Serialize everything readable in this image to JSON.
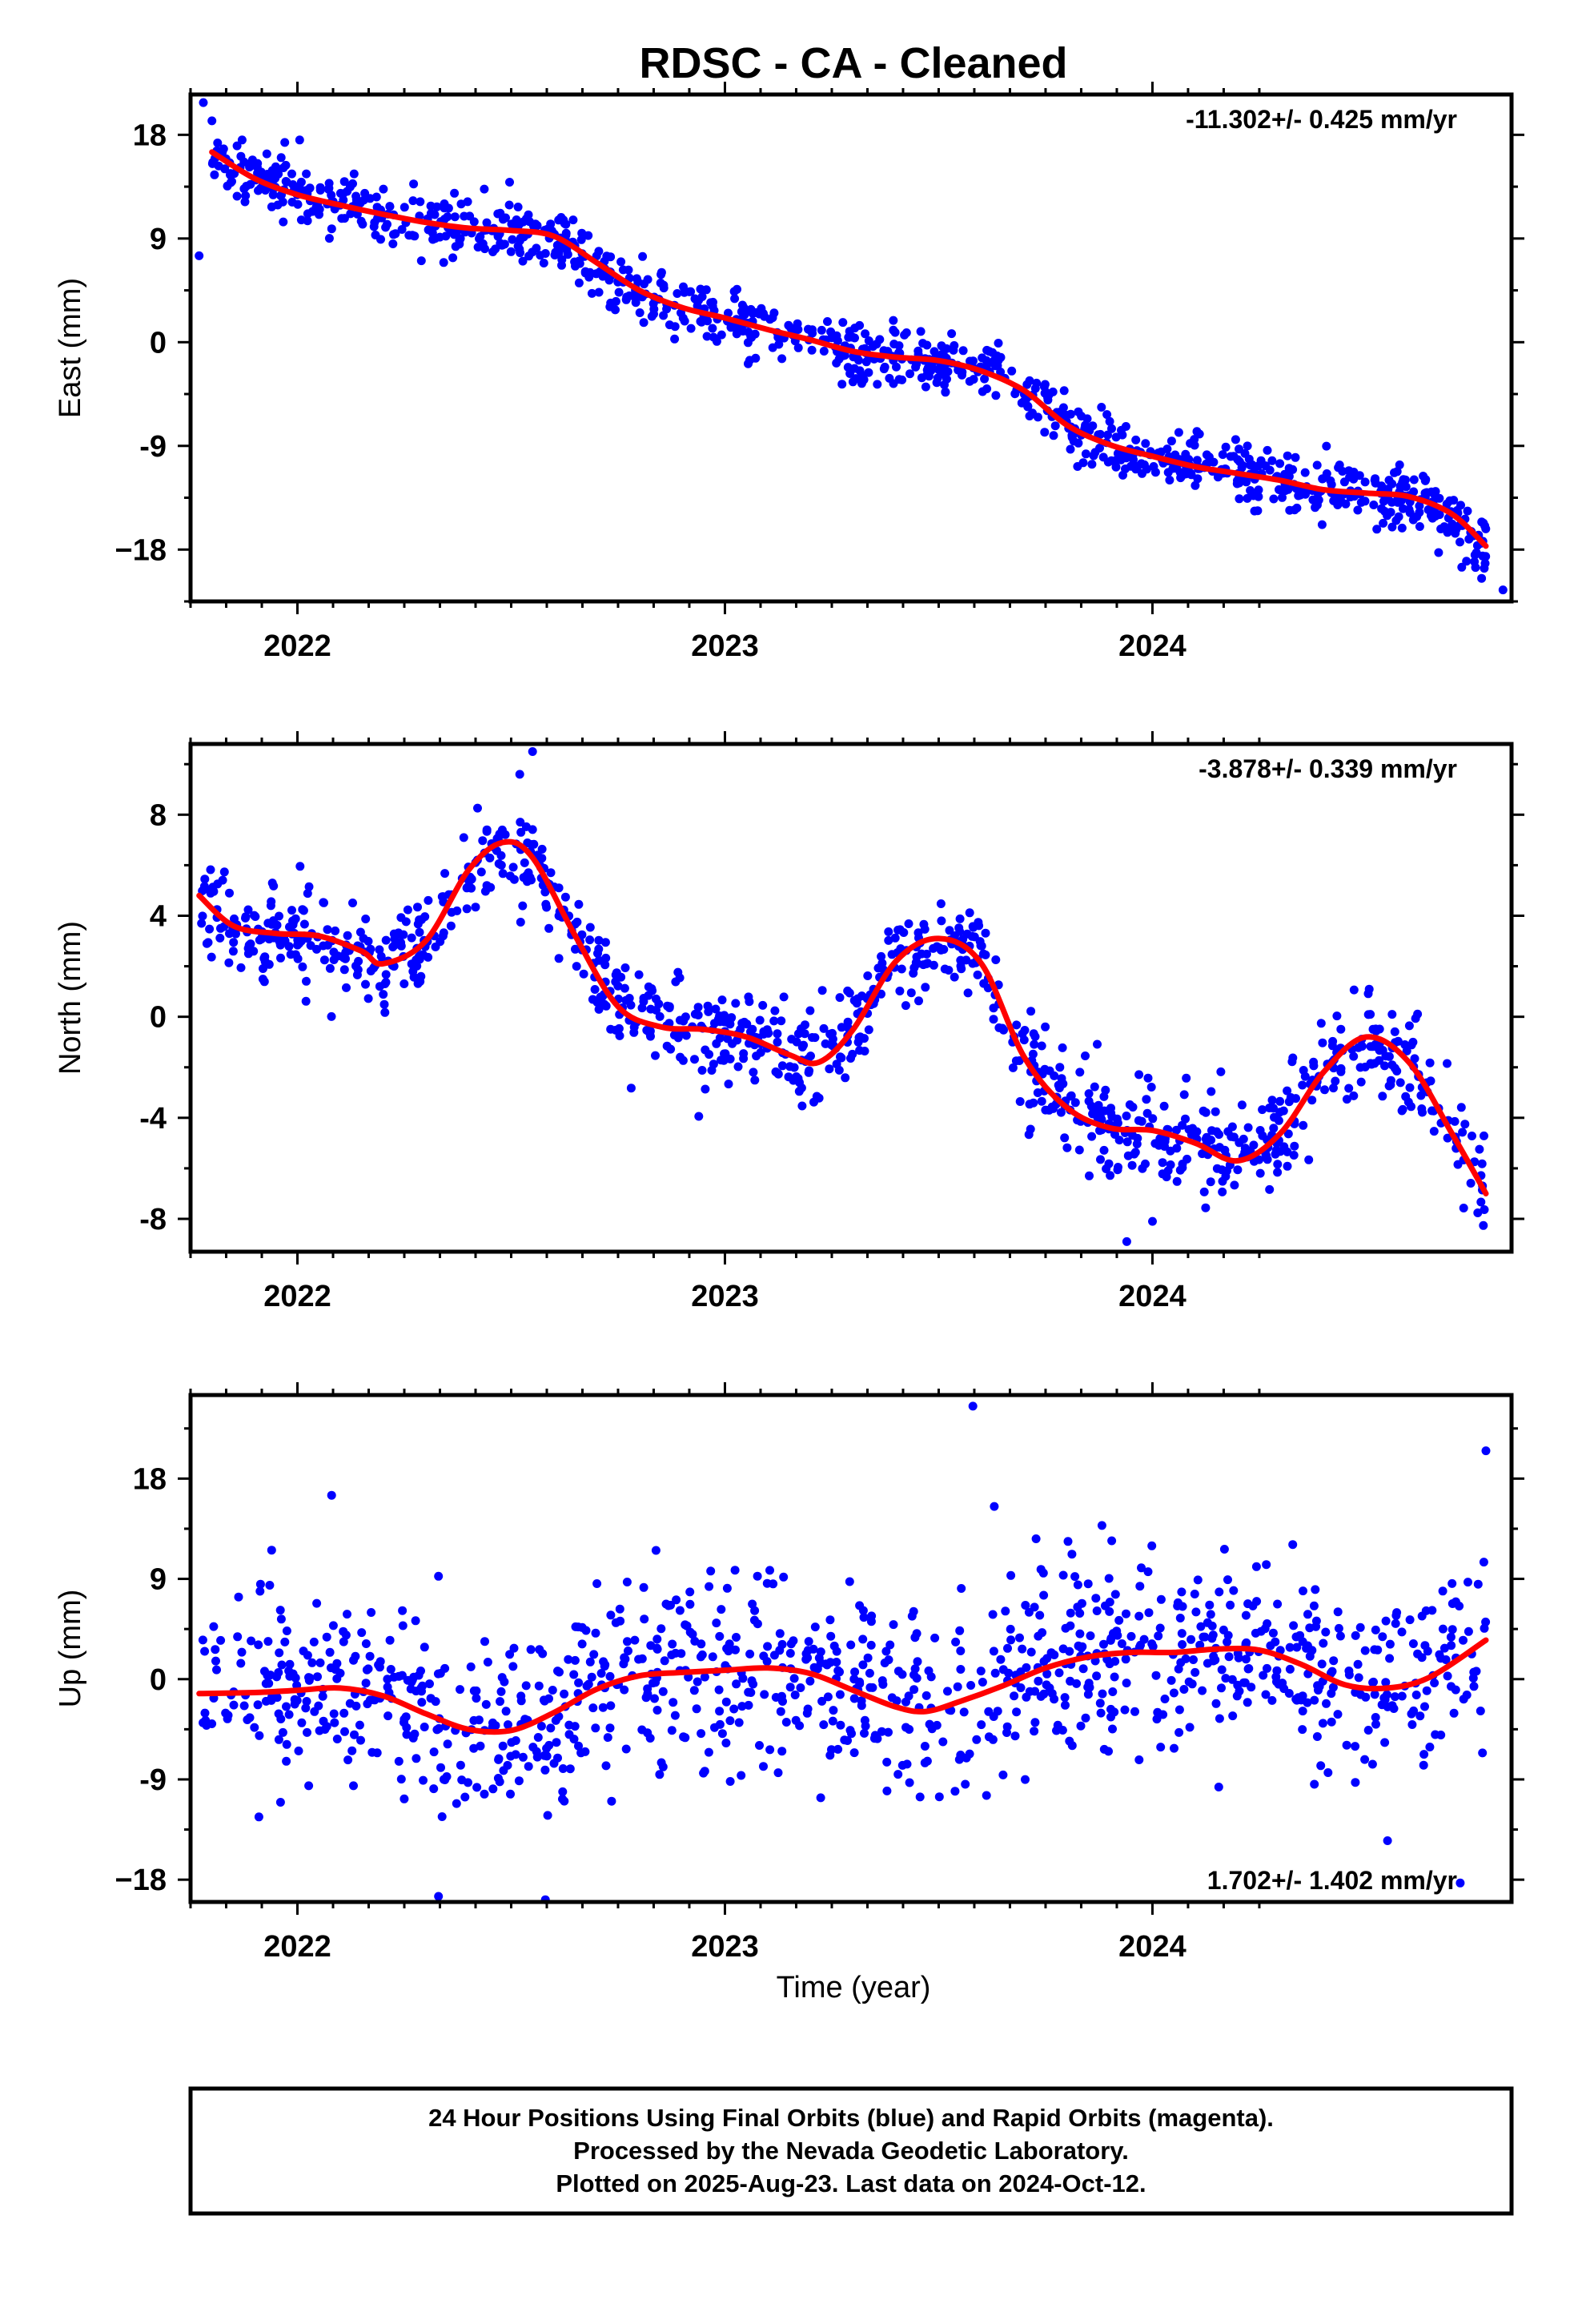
{
  "title": "RDSC  - CA - Cleaned",
  "colors": {
    "points": "#0000ff",
    "fit": "#ff0000",
    "frame": "#000000"
  },
  "x_axis": {
    "label": "Time (year)",
    "ticks": [
      "2022",
      "2023",
      "2024"
    ]
  },
  "footer": {
    "line1": "24 Hour Positions Using Final Orbits (blue) and Rapid Orbits (magenta).",
    "line2": "Processed by the Nevada Geodetic Laboratory.",
    "line3": "Plotted on 2025-Aug-23. Last data on 2024-Oct-12."
  },
  "chart_data": [
    {
      "type": "scatter",
      "component": "east",
      "ylabel": "East (mm)",
      "rate": "-11.302+/- 0.425 mm/yr",
      "rate_position": "top-right",
      "xlim": [
        2021.75,
        2024.84
      ],
      "ylim": [
        -22.5,
        21.5
      ],
      "yticks": [
        18,
        9,
        0,
        -9,
        -18
      ],
      "ytick_labels": [
        "18",
        "9",
        "0",
        "-9",
        "−18"
      ],
      "fit": {
        "x": [
          2021.8,
          2021.9,
          2022.0,
          2022.1,
          2022.2,
          2022.3,
          2022.4,
          2022.5,
          2022.6,
          2022.7,
          2022.8,
          2022.9,
          2023.0,
          2023.1,
          2023.2,
          2023.3,
          2023.4,
          2023.5,
          2023.6,
          2023.7,
          2023.8,
          2023.9,
          2024.0,
          2024.1,
          2024.2,
          2024.3,
          2024.4,
          2024.5,
          2024.6,
          2024.7,
          2024.78
        ],
        "y": [
          16.5,
          14.2,
          12.8,
          11.9,
          11.1,
          10.4,
          9.9,
          9.7,
          9.2,
          6.9,
          4.5,
          3.0,
          2.1,
          1.1,
          0.2,
          -0.8,
          -1.3,
          -1.6,
          -2.5,
          -4.2,
          -7.2,
          -8.9,
          -9.9,
          -10.8,
          -11.4,
          -12.0,
          -12.8,
          -13.1,
          -13.4,
          -14.9,
          -17.7
        ]
      },
      "seed": 11,
      "noise": 1.35,
      "extra_points": [
        [
          2021.78,
          20.8
        ],
        [
          2021.77,
          7.5
        ],
        [
          2024.82,
          -21.5
        ],
        [
          2024.77,
          -20.5
        ]
      ]
    },
    {
      "type": "scatter",
      "component": "north",
      "ylabel": "North (mm)",
      "rate": "-3.878+/- 0.339 mm/yr",
      "rate_position": "top-right",
      "xlim": [
        2021.75,
        2024.84
      ],
      "ylim": [
        -9.3,
        10.8
      ],
      "yticks": [
        8,
        4,
        0,
        -4,
        -8
      ],
      "ytick_labels": [
        "8",
        "4",
        "0",
        "-4",
        "-8"
      ],
      "fit": {
        "x": [
          2021.77,
          2021.85,
          2021.95,
          2022.05,
          2022.15,
          2022.2,
          2022.3,
          2022.4,
          2022.48,
          2022.55,
          2022.65,
          2022.75,
          2022.85,
          2022.95,
          2023.05,
          2023.15,
          2023.22,
          2023.3,
          2023.4,
          2023.5,
          2023.6,
          2023.7,
          2023.8,
          2023.9,
          2024.0,
          2024.1,
          2024.2,
          2024.3,
          2024.4,
          2024.5,
          2024.6,
          2024.7,
          2024.78
        ],
        "y": [
          4.8,
          3.6,
          3.3,
          3.2,
          2.6,
          2.1,
          3.0,
          5.8,
          6.9,
          6.3,
          3.2,
          0.4,
          -0.4,
          -0.5,
          -0.8,
          -1.5,
          -1.8,
          -0.5,
          2.2,
          3.1,
          2.1,
          -1.6,
          -3.6,
          -4.4,
          -4.5,
          -5.0,
          -5.7,
          -4.6,
          -2.2,
          -0.8,
          -1.8,
          -4.6,
          -7.0
        ]
      },
      "seed": 23,
      "noise": 0.95,
      "extra_points": [
        [
          2022.55,
          10.5
        ],
        [
          2022.52,
          9.6
        ],
        [
          2023.94,
          -8.9
        ],
        [
          2024.0,
          -8.1
        ]
      ]
    },
    {
      "type": "scatter",
      "component": "up",
      "ylabel": "Up (mm)",
      "rate": "1.702+/- 1.402 mm/yr",
      "rate_position": "bottom-right",
      "xlim": [
        2021.75,
        2024.84
      ],
      "ylim": [
        -20.0,
        25.5
      ],
      "yticks": [
        18,
        9,
        0,
        -9,
        -18
      ],
      "ytick_labels": [
        "18",
        "9",
        "0",
        "-9",
        "−18"
      ],
      "fit": {
        "x": [
          2021.77,
          2021.9,
          2022.0,
          2022.1,
          2022.2,
          2022.3,
          2022.4,
          2022.5,
          2022.6,
          2022.7,
          2022.8,
          2022.9,
          2023.0,
          2023.1,
          2023.2,
          2023.3,
          2023.4,
          2023.47,
          2023.55,
          2023.65,
          2023.75,
          2023.85,
          2023.95,
          2024.05,
          2024.15,
          2024.25,
          2024.35,
          2024.45,
          2024.55,
          2024.65,
          2024.78
        ],
        "y": [
          -1.3,
          -1.2,
          -1.0,
          -0.8,
          -1.5,
          -3.1,
          -4.5,
          -4.6,
          -3.0,
          -0.9,
          0.3,
          0.6,
          0.8,
          1.0,
          0.5,
          -1.0,
          -2.5,
          -2.9,
          -2.0,
          -0.6,
          1.0,
          2.0,
          2.4,
          2.4,
          2.7,
          2.6,
          1.3,
          -0.5,
          -0.8,
          0.2,
          3.5
        ]
      },
      "seed": 37,
      "noise": 4.2,
      "extra_points": [
        [
          2023.58,
          24.5
        ],
        [
          2024.78,
          20.5
        ],
        [
          2022.08,
          16.5
        ],
        [
          2023.63,
          15.5
        ],
        [
          2022.33,
          -19.5
        ],
        [
          2022.58,
          -19.8
        ],
        [
          2024.72,
          -18.3
        ],
        [
          2024.55,
          -14.5
        ]
      ]
    }
  ]
}
